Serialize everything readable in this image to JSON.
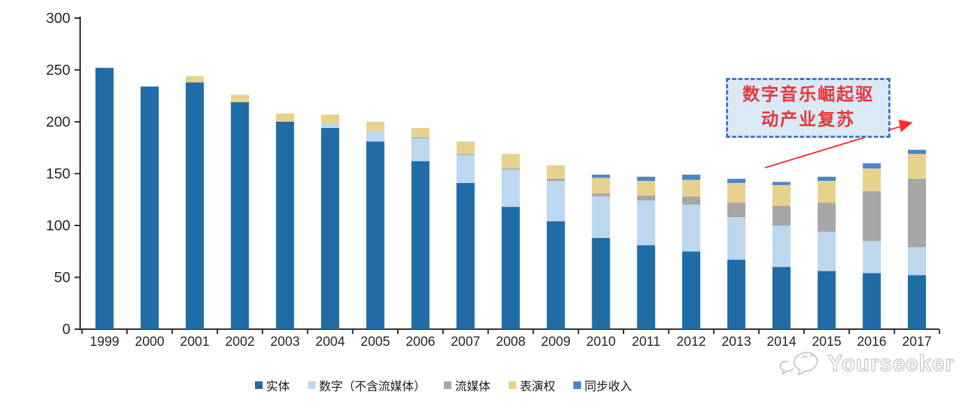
{
  "chart_data": {
    "type": "bar",
    "stacked": true,
    "title": "",
    "xlabel": "",
    "ylabel": "",
    "ylim": [
      0,
      300
    ],
    "y_ticks": [
      0,
      50,
      100,
      150,
      200,
      250,
      300
    ],
    "grid": false,
    "legend_position": "bottom",
    "categories": [
      "1999",
      "2000",
      "2001",
      "2002",
      "2003",
      "2004",
      "2005",
      "2006",
      "2007",
      "2008",
      "2009",
      "2010",
      "2011",
      "2012",
      "2013",
      "2014",
      "2015",
      "2016",
      "2017"
    ],
    "series": [
      {
        "name": "实体",
        "color": "#1f6ca7",
        "values": [
          252,
          234,
          238,
          219,
          200,
          194,
          181,
          162,
          141,
          118,
          104,
          88,
          81,
          75,
          67,
          60,
          56,
          54,
          52
        ]
      },
      {
        "name": "数字（不含流媒体）",
        "color": "#bdd7ee",
        "values": [
          0,
          0,
          0,
          0,
          0,
          4,
          10,
          22,
          27,
          36,
          39,
          40,
          43,
          45,
          41,
          40,
          38,
          31,
          27
        ]
      },
      {
        "name": "流媒体",
        "color": "#a6a6a6",
        "values": [
          0,
          0,
          0,
          0,
          0,
          0,
          0,
          1,
          1,
          1,
          2,
          3,
          5,
          8,
          14,
          19,
          28,
          48,
          66
        ]
      },
      {
        "name": "表演权",
        "color": "#e7d28d",
        "values": [
          0,
          0,
          6,
          7,
          8,
          9,
          9,
          9,
          12,
          14,
          13,
          15,
          14,
          16,
          19,
          20,
          21,
          22,
          24
        ]
      },
      {
        "name": "同步收入",
        "color": "#4a86c6",
        "values": [
          0,
          0,
          0,
          0,
          0,
          0,
          0,
          0,
          0,
          0,
          0,
          3,
          4,
          5,
          4,
          3,
          4,
          5,
          4
        ]
      }
    ],
    "axis_color": "#262626"
  },
  "annotation": {
    "line1": "数字音乐崛起驱",
    "line2": "动产业复苏",
    "text_color": "#e8373b",
    "box_fill": "#dbe8f6",
    "box_border": "#4472c4",
    "arrow_color": "#ff2a2a"
  },
  "watermark": {
    "text": "Yourseeker",
    "logo": "chat-smiley-logo",
    "color": "#c3c3c3"
  }
}
